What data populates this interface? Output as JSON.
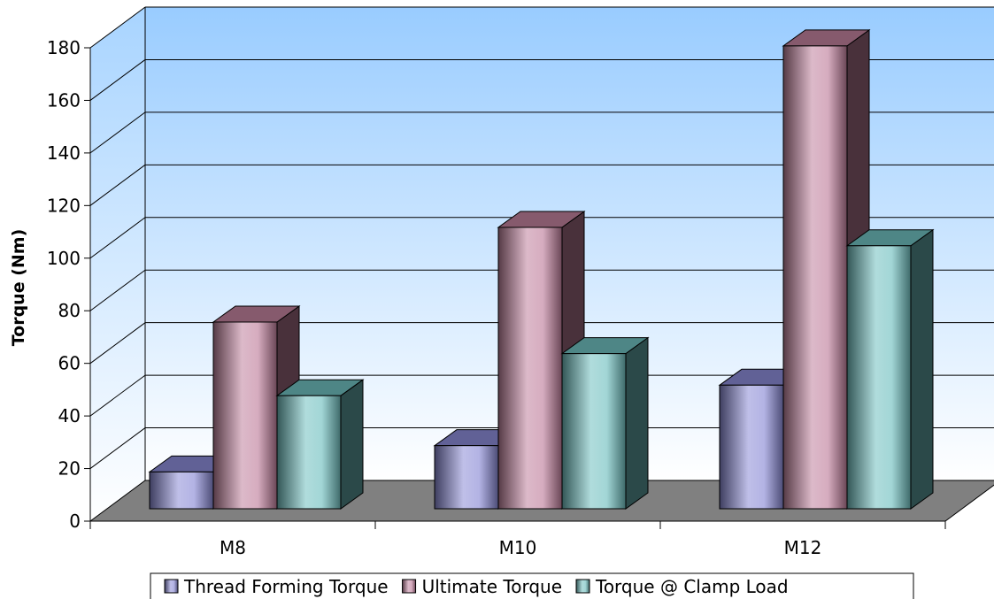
{
  "chart_data": {
    "type": "bar",
    "style": "3d-clustered-column",
    "title": "",
    "xlabel": "",
    "ylabel": "Torque (Nm)",
    "ylim": [
      0,
      180
    ],
    "yticks": [
      0,
      20,
      40,
      60,
      80,
      100,
      120,
      140,
      160,
      180
    ],
    "categories": [
      "M8",
      "M10",
      "M12"
    ],
    "series": [
      {
        "name": "Thread Forming Torque",
        "values": [
          14,
          24,
          47
        ],
        "color": "#8a8ad6"
      },
      {
        "name": "Ultimate Torque",
        "values": [
          71,
          107,
          176
        ],
        "color": "#c0809c"
      },
      {
        "name": "Torque @ Clamp Load",
        "values": [
          43,
          59,
          100
        ],
        "color": "#70c0c0"
      }
    ],
    "grid": true,
    "legend": "bottom",
    "wall_color": "#99ccff",
    "floor_color": "#808080"
  }
}
